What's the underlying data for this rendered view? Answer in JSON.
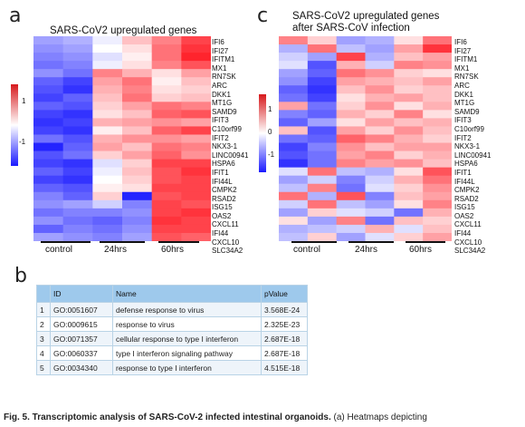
{
  "panel_a": {
    "letter": "a",
    "title": "SARS-CoV2 upregulated genes",
    "genes": [
      "IFI6",
      "IFI27",
      "IFITM1",
      "MX1",
      "RN7SK",
      "ARC",
      "DKK1",
      "MT1G",
      "SAMD9",
      "IFIT3",
      "C10orf99",
      "IFIT2",
      "NKX3-1",
      "LINC00941",
      "HSPA6",
      "IFIT1",
      "IFI44L",
      "CMPK2",
      "RSAD2",
      "ISG15",
      "OAS2",
      "CXCL11",
      "IFI44",
      "CXCL10",
      "SLC34A2"
    ],
    "groups": [
      "control",
      "24hrs",
      "60hrs"
    ],
    "colorbar_ticks": [
      "1",
      "-1"
    ]
  },
  "panel_c": {
    "letter": "c",
    "title_line1": "SARS-CoV2 upregulated genes",
    "title_line2": "after SARS-CoV infection",
    "genes": [
      "IFI6",
      "IFI27",
      "IFITM1",
      "MX1",
      "RN7SK",
      "ARC",
      "DKK1",
      "MT1G",
      "SAMD9",
      "IFIT3",
      "C10orf99",
      "IFIT2",
      "NKX3-1",
      "LINC00941",
      "HSPA6",
      "IFIT1",
      "IFI44L",
      "CMPK2",
      "RSAD2",
      "ISG15",
      "OAS2",
      "CXCL11",
      "IFI44",
      "CXCL10",
      "SLC34A2"
    ],
    "groups": [
      "control",
      "24hrs",
      "60hrs"
    ],
    "colorbar_ticks": [
      "1",
      "0",
      "-1"
    ]
  },
  "panel_b": {
    "letter": "b",
    "headers": [
      "",
      "ID",
      "Name",
      "pValue"
    ],
    "rows": [
      {
        "n": "1",
        "id": "GO:0051607",
        "name": "defense response to virus",
        "p": "3.568E-24"
      },
      {
        "n": "2",
        "id": "GO:0009615",
        "name": "response to virus",
        "p": "2.325E-23"
      },
      {
        "n": "3",
        "id": "GO:0071357",
        "name": "cellular response to type I interferon",
        "p": "2.687E-18"
      },
      {
        "n": "4",
        "id": "GO:0060337",
        "name": "type I interferon signaling pathway",
        "p": "2.687E-18"
      },
      {
        "n": "5",
        "id": "GO:0034340",
        "name": "response to type I interferon",
        "p": "4.515E-18"
      }
    ]
  },
  "caption": {
    "bold": "Fig. 5. Transcriptomic analysis of SARS-CoV-2 infected intestinal organoids.",
    "rest": " (a) Heatmaps depicting"
  },
  "heatmap_a_values": [
    [
      -0.6,
      -0.5,
      -0.1,
      0.4,
      0.8,
      1.2
    ],
    [
      -0.7,
      -0.6,
      0.0,
      0.2,
      0.9,
      1.3
    ],
    [
      -0.8,
      -0.7,
      -0.2,
      0.1,
      0.9,
      1.4
    ],
    [
      -0.9,
      -0.8,
      -0.1,
      0.2,
      0.8,
      1.1
    ],
    [
      -0.7,
      -0.9,
      0.8,
      0.5,
      0.2,
      0.6
    ],
    [
      -1.0,
      -1.2,
      0.6,
      0.9,
      0.1,
      0.4
    ],
    [
      -1.1,
      -1.3,
      0.5,
      0.8,
      0.2,
      0.3
    ],
    [
      -1.2,
      -1.0,
      0.4,
      0.9,
      0.3,
      0.4
    ],
    [
      -1.0,
      -1.1,
      0.3,
      0.6,
      0.9,
      0.8
    ],
    [
      -1.2,
      -1.3,
      0.2,
      0.4,
      1.0,
      1.1
    ],
    [
      -1.3,
      -1.2,
      0.5,
      0.6,
      0.7,
      0.6
    ],
    [
      -1.2,
      -1.3,
      0.1,
      0.4,
      1.0,
      1.2
    ],
    [
      -0.9,
      -1.1,
      0.5,
      0.7,
      0.7,
      0.6
    ],
    [
      -1.4,
      -1.0,
      0.6,
      0.4,
      0.9,
      0.8
    ],
    [
      -1.1,
      -0.9,
      0.3,
      0.6,
      1.0,
      0.7
    ],
    [
      -1.2,
      -1.3,
      -0.2,
      0.3,
      1.2,
      1.2
    ],
    [
      -1.0,
      -1.2,
      -0.1,
      0.4,
      1.1,
      1.3
    ],
    [
      -1.2,
      -1.3,
      0.0,
      0.3,
      1.1,
      1.2
    ],
    [
      -1.0,
      -1.1,
      0.1,
      0.2,
      1.2,
      1.2
    ],
    [
      -0.8,
      -1.0,
      0.3,
      -1.4,
      1.1,
      1.2
    ],
    [
      -0.7,
      -0.6,
      -0.3,
      -0.8,
      1.2,
      1.1
    ],
    [
      -0.9,
      -0.8,
      -0.8,
      -0.7,
      1.2,
      1.3
    ],
    [
      -0.7,
      -0.9,
      -1.0,
      -0.8,
      1.3,
      1.2
    ],
    [
      -1.0,
      -0.8,
      -0.9,
      -0.7,
      1.2,
      1.2
    ],
    [
      -0.6,
      -0.7,
      -0.8,
      -0.6,
      1.1,
      1.0
    ]
  ],
  "heatmap_c_values": [
    [
      0.8,
      0.3,
      -0.6,
      -0.5,
      0.2,
      0.9
    ],
    [
      -0.5,
      0.9,
      -0.4,
      -0.6,
      0.6,
      1.3
    ],
    [
      -0.3,
      -0.6,
      1.2,
      -0.5,
      0.4,
      0.6
    ],
    [
      -0.2,
      -1.1,
      0.5,
      -0.3,
      0.8,
      0.7
    ],
    [
      -0.6,
      -1.0,
      0.9,
      0.7,
      0.3,
      0.2
    ],
    [
      -0.7,
      -1.2,
      0.6,
      0.5,
      0.4,
      0.6
    ],
    [
      -1.0,
      -1.3,
      0.4,
      0.7,
      0.3,
      0.4
    ],
    [
      -0.9,
      -1.2,
      0.2,
      0.5,
      0.6,
      0.4
    ],
    [
      0.6,
      -0.9,
      0.3,
      0.7,
      0.2,
      0.5
    ],
    [
      -0.8,
      -1.0,
      0.5,
      0.3,
      0.8,
      0.2
    ],
    [
      -1.0,
      -0.6,
      0.2,
      0.6,
      0.4,
      0.5
    ],
    [
      0.4,
      -1.1,
      0.6,
      0.3,
      0.7,
      0.4
    ],
    [
      -0.9,
      -1.0,
      1.0,
      0.8,
      0.5,
      0.3
    ],
    [
      -1.2,
      -0.8,
      0.7,
      0.4,
      0.6,
      0.6
    ],
    [
      -1.1,
      -0.9,
      0.6,
      0.8,
      0.3,
      0.5
    ],
    [
      -1.3,
      -0.9,
      0.8,
      0.6,
      0.7,
      0.4
    ],
    [
      -0.2,
      0.9,
      -0.4,
      -0.5,
      0.2,
      1.1
    ],
    [
      -0.6,
      -0.3,
      -0.8,
      -0.3,
      0.5,
      0.9
    ],
    [
      -0.4,
      0.8,
      -0.9,
      -0.2,
      0.3,
      0.7
    ],
    [
      0.9,
      -0.5,
      1.1,
      -0.8,
      0.4,
      0.6
    ],
    [
      -0.3,
      0.9,
      -0.4,
      -0.6,
      0.2,
      0.8
    ],
    [
      -0.6,
      0.3,
      -0.2,
      -0.3,
      -0.9,
      0.5
    ],
    [
      0.2,
      -0.6,
      0.8,
      -0.9,
      0.4,
      0.3
    ],
    [
      -0.5,
      -0.4,
      -0.3,
      0.5,
      -0.2,
      0.4
    ],
    [
      -0.4,
      0.3,
      -0.6,
      -0.2,
      0.3,
      0.6
    ]
  ]
}
